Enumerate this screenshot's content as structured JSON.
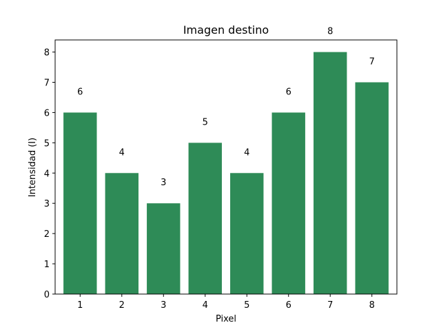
{
  "chart_data": {
    "type": "bar",
    "title": "Imagen destino",
    "xlabel": "Pixel",
    "ylabel": "Intensidad (I)",
    "categories": [
      "1",
      "2",
      "3",
      "4",
      "5",
      "6",
      "7",
      "8"
    ],
    "values": [
      6,
      4,
      3,
      5,
      4,
      6,
      8,
      7
    ],
    "data_labels": [
      "6",
      "4",
      "3",
      "5",
      "4",
      "6",
      "8",
      "7"
    ],
    "ylim": [
      0,
      8.4
    ],
    "yticks": [
      0,
      1,
      2,
      3,
      4,
      5,
      6,
      7,
      8
    ],
    "ytick_labels": [
      "0",
      "1",
      "2",
      "3",
      "4",
      "5",
      "6",
      "7",
      "8"
    ],
    "bar_color": "#2e8b57",
    "grid": false,
    "legend": "none"
  }
}
